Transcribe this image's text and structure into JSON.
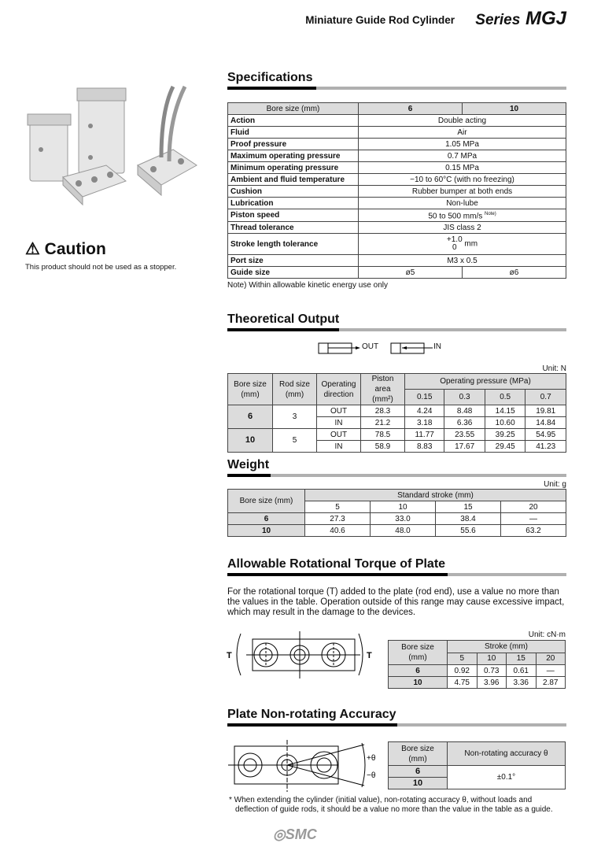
{
  "header": {
    "title": "Miniature Guide Rod Cylinder",
    "series_prefix": "Series",
    "series": "MGJ"
  },
  "caution": {
    "title": "Caution",
    "text": "This product should not be used as a stopper."
  },
  "specifications": {
    "title": "Specifications",
    "header": [
      "Bore size (mm)",
      "6",
      "10"
    ],
    "rows": [
      [
        "Action",
        "Double acting"
      ],
      [
        "Fluid",
        "Air"
      ],
      [
        "Proof pressure",
        "1.05 MPa"
      ],
      [
        "Maximum operating pressure",
        "0.7 MPa"
      ],
      [
        "Minimum operating pressure",
        "0.15 MPa"
      ],
      [
        "Ambient and fluid temperature",
        "−10 to 60°C (with no freezing)"
      ],
      [
        "Cushion",
        "Rubber bumper at both ends"
      ],
      [
        "Lubrication",
        "Non-lube"
      ],
      [
        "Piston speed",
        "50 to 500 mm/s"
      ],
      [
        "Thread tolerance",
        "JIS class 2"
      ]
    ],
    "piston_note_mark": "Note)",
    "stroke": {
      "label": "Stroke length tolerance",
      "upper": "+1.0",
      "lower": "0",
      "unit": "mm"
    },
    "port": [
      "Port size",
      "M3 x 0.5"
    ],
    "guide": [
      "Guide size",
      "ø5",
      "ø6"
    ],
    "note": "Note) Within allowable kinetic energy use only"
  },
  "theoretical": {
    "title": "Theoretical Output",
    "out": "OUT",
    "in": "IN",
    "unit": "Unit: N",
    "headers": {
      "bore": "Bore size",
      "bore_unit": "(mm)",
      "rod": "Rod size",
      "rod_unit": "(mm)",
      "dir": "Operating",
      "dir2": "direction",
      "area": "Piston area",
      "area_unit": "(mm²)",
      "pressure": "Operating pressure (MPa)",
      "pressures": [
        "0.15",
        "0.3",
        "0.5",
        "0.7"
      ]
    },
    "rows": [
      {
        "bore": "6",
        "rod": "3",
        "out": [
          "OUT",
          "28.3",
          "4.24",
          "8.48",
          "14.15",
          "19.81"
        ],
        "in": [
          "IN",
          "21.2",
          "3.18",
          "6.36",
          "10.60",
          "14.84"
        ]
      },
      {
        "bore": "10",
        "rod": "5",
        "out": [
          "OUT",
          "78.5",
          "11.77",
          "23.55",
          "39.25",
          "54.95"
        ],
        "in": [
          "IN",
          "58.9",
          "8.83",
          "17.67",
          "29.45",
          "41.23"
        ]
      }
    ]
  },
  "weight": {
    "title": "Weight",
    "unit": "Unit: g",
    "bore": "Bore size (mm)",
    "stroke": "Standard stroke (mm)",
    "strokes": [
      "5",
      "10",
      "15",
      "20"
    ],
    "rows": [
      [
        "6",
        "27.3",
        "33.0",
        "38.4",
        "—"
      ],
      [
        "10",
        "40.6",
        "48.0",
        "55.6",
        "63.2"
      ]
    ]
  },
  "torque": {
    "title": "Allowable Rotational Torque of Plate",
    "text": "For the rotational torque (T) added to the plate (rod end), use a value no more than the values in the table. Operation outside of this range may cause excessive impact, which may result in the damage to the devices.",
    "T": "T",
    "unit": "Unit: cN·m",
    "bore": "Bore size",
    "bore_unit": "(mm)",
    "stroke": "Stroke (mm)",
    "strokes": [
      "5",
      "10",
      "15",
      "20"
    ],
    "rows": [
      [
        "6",
        "0.92",
        "0.73",
        "0.61",
        "—"
      ],
      [
        "10",
        "4.75",
        "3.96",
        "3.36",
        "2.87"
      ]
    ]
  },
  "accuracy": {
    "title": "Plate Non-rotating Accuracy",
    "plus": "+θ",
    "minus": "−θ",
    "bore": "Bore size",
    "bore_unit": "(mm)",
    "col": "Non-rotating accuracy θ",
    "bores": [
      "6",
      "10"
    ],
    "value": "±0.1°",
    "footnote": "* When extending the cylinder (initial value), non-rotating accuracy θ, without loads and deflection of guide rods, it should be a value no more than the value in the table as a guide."
  },
  "footer": {
    "logo": "SMC"
  }
}
